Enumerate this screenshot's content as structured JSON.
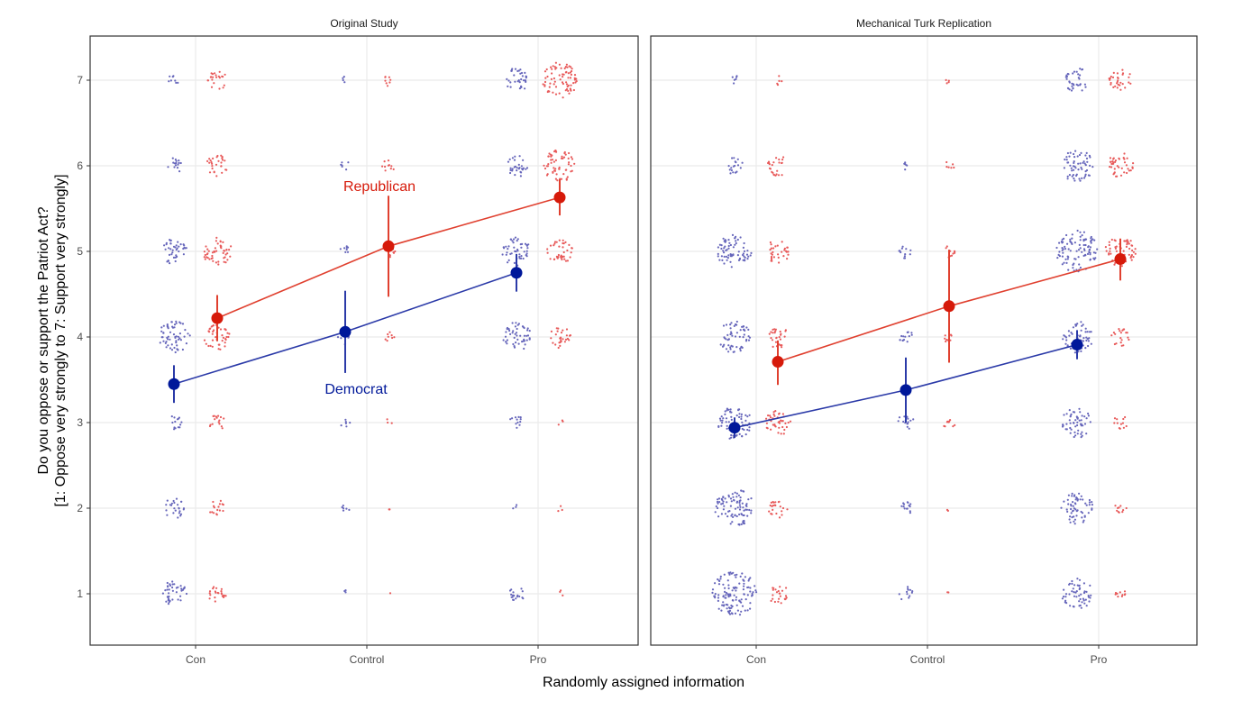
{
  "chart_data": {
    "type": "scatter",
    "xlabel": "Randomly assigned information",
    "ylabel_lines": [
      "Do you oppose or support the Patriot Act?",
      "[1: Oppose very strongly to 7: Support very strongly]"
    ],
    "categories": [
      "Con",
      "Control",
      "Pro"
    ],
    "yticks": [
      1,
      2,
      3,
      4,
      5,
      6,
      7
    ],
    "ylim": [
      0.4,
      7.5
    ],
    "grid": true,
    "colors": {
      "Democrat": "#00189a",
      "Republican": "#d61a0a",
      "Democrat_dots": "#6666bb",
      "Republican_dots": "#e85a5a"
    },
    "panels": [
      {
        "title": "Original Study",
        "series": [
          {
            "name": "Democrat",
            "label": "Democrat",
            "means": [
              3.45,
              4.06,
              4.75
            ],
            "ci_low": [
              3.23,
              3.58,
              4.53
            ],
            "ci_high": [
              3.67,
              4.54,
              4.97
            ],
            "counts": [
              [
                40,
                25,
                14,
                60,
                40,
                15,
                8
              ],
              [
                3,
                6,
                6,
                14,
                8,
                6,
                4
              ],
              [
                18,
                3,
                12,
                50,
                48,
                30,
                35
              ]
            ]
          },
          {
            "name": "Republican",
            "label": "Republican",
            "means": [
              4.22,
              5.06,
              5.63
            ],
            "ci_low": [
              3.95,
              4.47,
              5.42
            ],
            "ci_high": [
              4.49,
              5.65,
              5.84
            ],
            "counts": [
              [
                22,
                16,
                16,
                40,
                50,
                28,
                22
              ],
              [
                1,
                2,
                3,
                8,
                10,
                10,
                8
              ],
              [
                3,
                3,
                3,
                28,
                40,
                60,
                75
              ]
            ]
          }
        ]
      },
      {
        "title": "Mechanical Turk Replication",
        "series": [
          {
            "name": "Democrat",
            "means": [
              2.94,
              3.38,
              3.91
            ],
            "ci_low": [
              2.82,
              3.0,
              3.74
            ],
            "ci_high": [
              3.06,
              3.76,
              4.08
            ],
            "counts": [
              [
                120,
                90,
                65,
                60,
                70,
                18,
                6
              ],
              [
                12,
                14,
                16,
                14,
                12,
                6,
                0
              ],
              [
                55,
                60,
                55,
                60,
                100,
                60,
                35
              ]
            ]
          },
          {
            "name": "Republican",
            "means": [
              3.71,
              4.36,
              4.91
            ],
            "ci_low": [
              3.44,
              3.7,
              4.66
            ],
            "ci_high": [
              3.96,
              5.02,
              5.15
            ],
            "counts": [
              [
                24,
                22,
                40,
                28,
                32,
                24,
                5
              ],
              [
                2,
                2,
                10,
                8,
                10,
                6,
                4
              ],
              [
                10,
                10,
                12,
                20,
                55,
                40,
                30
              ]
            ]
          }
        ]
      }
    ]
  }
}
